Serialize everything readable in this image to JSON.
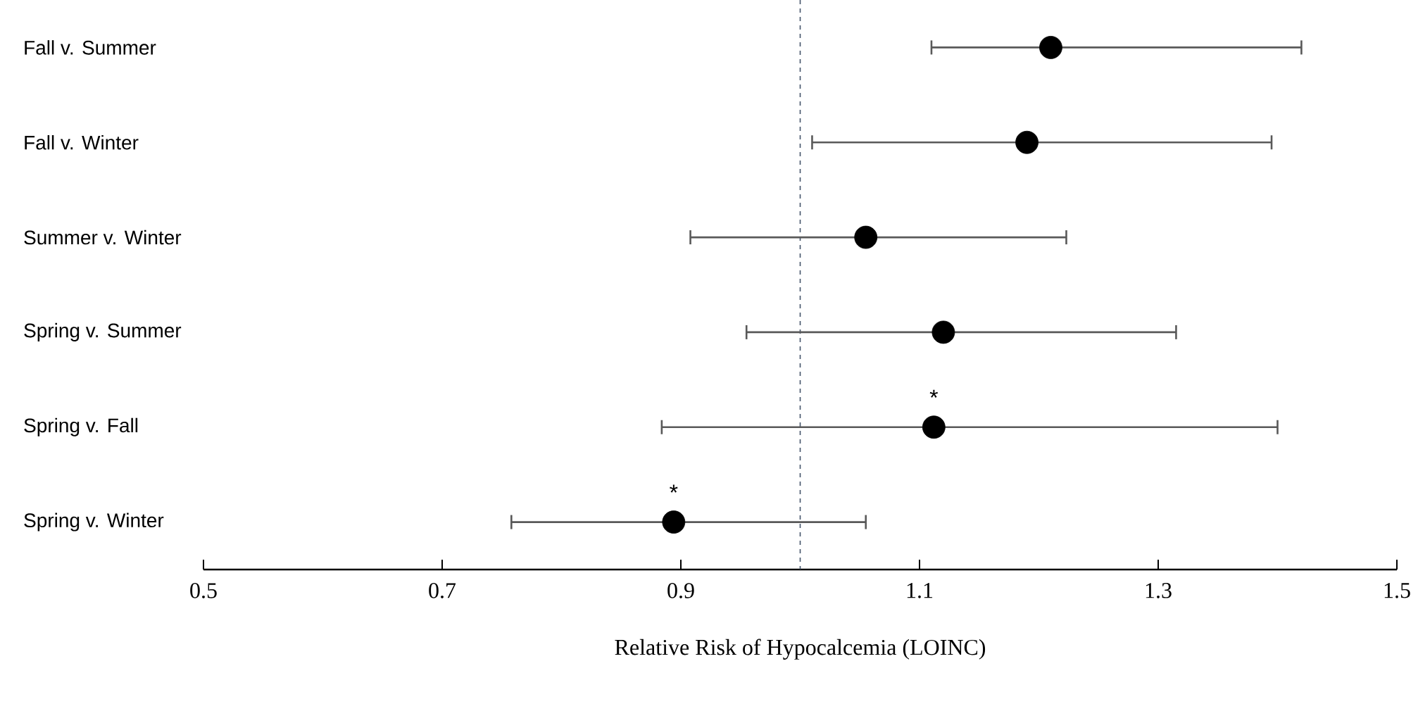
{
  "chart_data": {
    "type": "scatter",
    "orientation": "horizontal",
    "xlabel": "Relative Risk of Hypocalcemia (LOINC)",
    "categories": [
      "Fall v. Summer",
      "Fall v. Winter",
      "Summer v. Winter",
      "Spring v. Summer",
      "Spring v. Fall",
      "Spring v. Winter"
    ],
    "values": [
      1.21,
      1.19,
      1.055,
      1.12,
      1.112,
      0.894
    ],
    "errors": [
      [
        1.11,
        1.42
      ],
      [
        1.01,
        1.395
      ],
      [
        0.908,
        1.223
      ],
      [
        0.955,
        1.315
      ],
      [
        0.884,
        1.4
      ],
      [
        0.758,
        1.055
      ]
    ],
    "color": "#000000",
    "marker": "circle",
    "xlim": [
      0.5,
      1.5
    ],
    "xticks": [
      0.5,
      0.7,
      0.9,
      1.1,
      1.3,
      1.5
    ],
    "ref_lines": [
      {
        "axis": "x",
        "value": 1,
        "color": "#44546a",
        "line_style": "dashed"
      }
    ],
    "annotations": [
      {
        "text": "*",
        "x": 1.112,
        "y": "Spring v. Fall"
      },
      {
        "text": "*",
        "x": 0.894,
        "y": "Spring v. Winter"
      }
    ],
    "grid": false
  }
}
